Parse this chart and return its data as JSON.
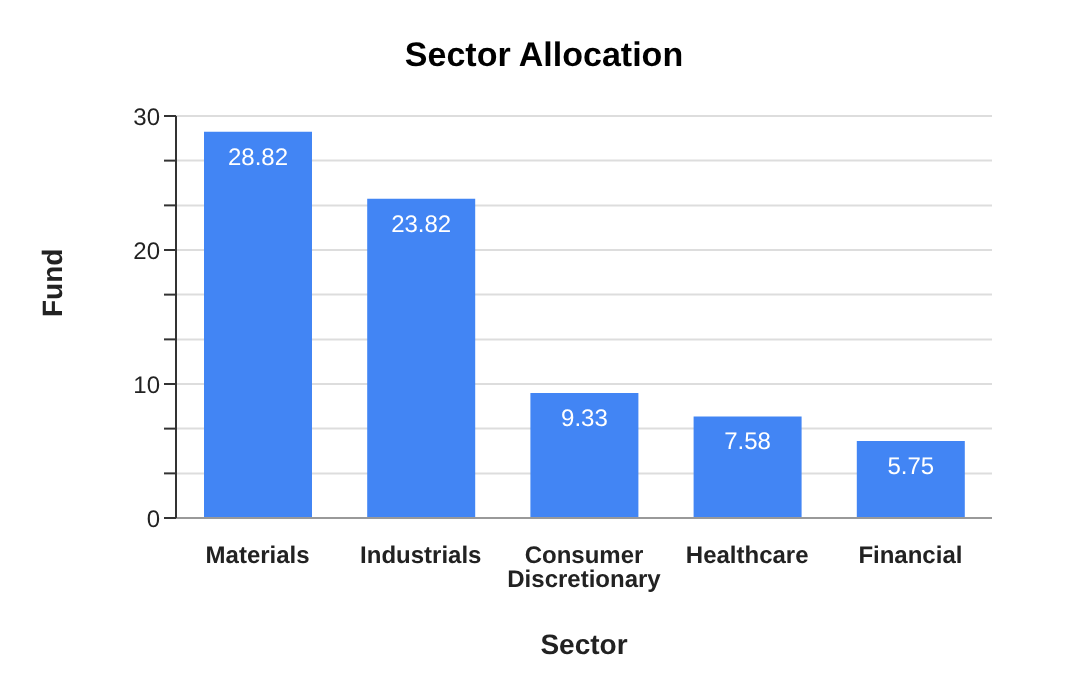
{
  "chart_data": {
    "type": "bar",
    "title": "Sector Allocation",
    "xlabel": "Sector",
    "ylabel": "Fund",
    "categories": [
      "Materials",
      "Industrials",
      "Consumer Discretionary",
      "Healthcare",
      "Financial"
    ],
    "values": [
      28.82,
      23.82,
      9.33,
      7.58,
      5.75
    ],
    "color": "#4285f4",
    "data_labels": true,
    "ylim": [
      0,
      30
    ],
    "yticks": [
      0,
      {
        "value": 3.33,
        "label": null
      },
      {
        "value": 6.67,
        "label": null
      },
      10,
      {
        "value": 13.33,
        "label": null
      },
      {
        "value": 16.67,
        "label": null
      },
      20,
      {
        "value": 23.33,
        "label": null
      },
      {
        "value": 26.67,
        "label": null
      },
      30
    ],
    "grid": "y"
  }
}
